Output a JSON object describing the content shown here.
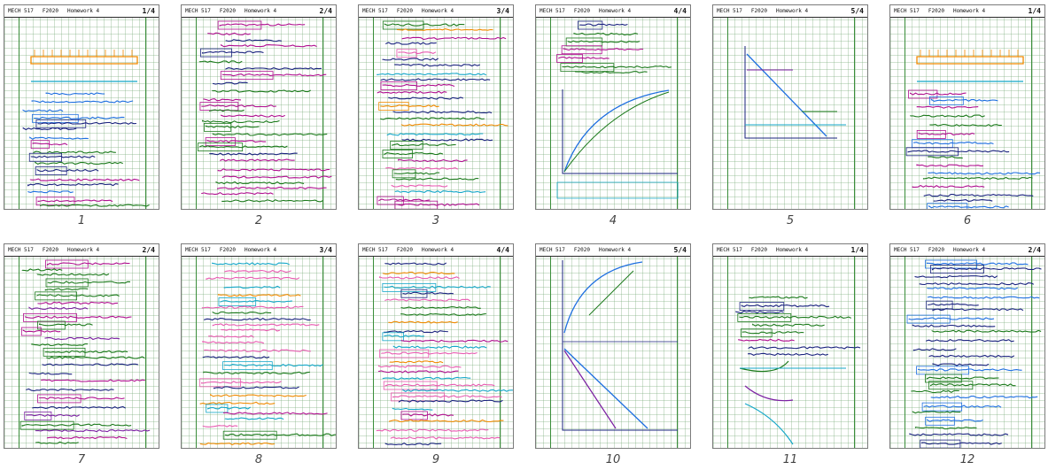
{
  "pages": [
    {
      "label": "1",
      "header": {
        "course": "MECH 517",
        "code": "F2020",
        "topic": "Homework 4",
        "frac": "1/4"
      }
    },
    {
      "label": "2",
      "header": {
        "course": "MECH 517",
        "code": "F2020",
        "topic": "Homework 4",
        "frac": "2/4"
      }
    },
    {
      "label": "3",
      "header": {
        "course": "MECH 517",
        "code": "F2020",
        "topic": "Homework 4",
        "frac": "3/4"
      }
    },
    {
      "label": "4",
      "header": {
        "course": "MECH 517",
        "code": "F2020",
        "topic": "Homework 4",
        "frac": "4/4"
      }
    },
    {
      "label": "5",
      "header": {
        "course": "MECH 517",
        "code": "F2020",
        "topic": "Homework 4",
        "frac": "5/4"
      }
    },
    {
      "label": "6",
      "header": {
        "course": "MECH 517",
        "code": "F2020",
        "topic": "Homework 4",
        "frac": "1/4"
      }
    },
    {
      "label": "7",
      "header": {
        "course": "MECH 517",
        "code": "F2020",
        "topic": "Homework 4",
        "frac": "2/4"
      }
    },
    {
      "label": "8",
      "header": {
        "course": "MECH 517",
        "code": "F2020",
        "topic": "Homework 4",
        "frac": "3/4"
      }
    },
    {
      "label": "9",
      "header": {
        "course": "MECH 517",
        "code": "F2020",
        "topic": "Homework 4",
        "frac": "4/4"
      }
    },
    {
      "label": "10",
      "header": {
        "course": "MECH 517",
        "code": "F2020",
        "topic": "Homework 4",
        "frac": "5/4"
      }
    },
    {
      "label": "11",
      "header": {
        "course": "MECH 517",
        "code": "F2020",
        "topic": "Homework 4",
        "frac": "1/4"
      }
    },
    {
      "label": "12",
      "header": {
        "course": "MECH 517",
        "code": "F2020",
        "topic": "Homework 4",
        "frac": "2/4"
      }
    }
  ],
  "colors": {
    "navy": "#1a237e",
    "green": "#1b7a1b",
    "magenta": "#b0108f",
    "blue": "#1e6fe0",
    "orange": "#f08a00",
    "cyan": "#14a7c8",
    "purple": "#7b1fa2",
    "pink": "#e85ab0",
    "gridline": "#9cc59c",
    "margin": "#3a8d3a"
  }
}
